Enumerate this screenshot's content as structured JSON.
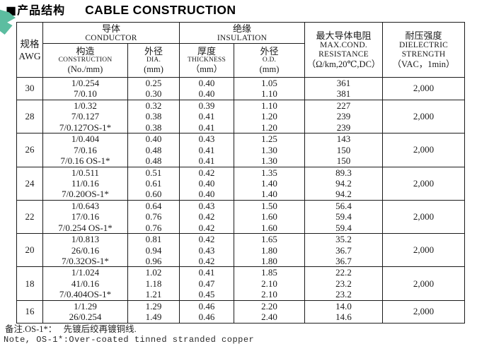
{
  "page": {
    "title_bullet": "■",
    "title_cn": "产品结构",
    "title_en": "CABLE CONSTRUCTION",
    "accent_color": "#5cbda0"
  },
  "table": {
    "headers": {
      "awg_cn": "规格",
      "awg_en": "AWG",
      "conductor_cn": "导体",
      "conductor_en": "CONDUCTOR",
      "insulation_cn": "绝缘",
      "insulation_en": "INSULATION",
      "construction_cn": "构造",
      "construction_en": "CONSTRUCTION",
      "construction_unit": "(No./mm)",
      "dia_cn": "外径",
      "dia_en": "DIA.",
      "dia_unit": "(mm)",
      "thickness_cn": "厚度",
      "thickness_en": "THICKNESS",
      "thickness_unit": "（mm）",
      "od_cn": "外径",
      "od_en": "O.D.",
      "od_unit": "(mm)",
      "resistance_cn": "最大导体电阻",
      "resistance_en1": "MAX.COND.",
      "resistance_en2": "RESISTANCE",
      "resistance_unit": "（Ω/km,20℃,DC）",
      "dielectric_cn": "耐压强度",
      "dielectric_en1": "DIELECTRIC",
      "dielectric_en2": "STRENGTH",
      "dielectric_unit": "（VAC，1min）"
    },
    "rows": [
      {
        "awg": "30",
        "construction": [
          "1/0.254",
          "7/0.10"
        ],
        "dia": [
          "0.25",
          "0.30"
        ],
        "thickness": [
          "0.40",
          "0.40"
        ],
        "od": [
          "1.05",
          "1.10"
        ],
        "resistance": [
          "361",
          "381"
        ],
        "dielectric": "2,000"
      },
      {
        "awg": "28",
        "construction": [
          "1/0.32",
          "7/0.127",
          "7/0.127OS-1*"
        ],
        "dia": [
          "0.32",
          "0.38",
          "0.38"
        ],
        "thickness": [
          "0.39",
          "0.41",
          "0.41"
        ],
        "od": [
          "1.10",
          "1.20",
          "1.20"
        ],
        "resistance": [
          "227",
          "239",
          "239"
        ],
        "dielectric": "2,000"
      },
      {
        "awg": "26",
        "construction": [
          "1/0.404",
          "7/0.16",
          "7/0.16 OS-1*"
        ],
        "dia": [
          "0.40",
          "0.48",
          "0.48"
        ],
        "thickness": [
          "0.43",
          "0.41",
          "0.41"
        ],
        "od": [
          "1.25",
          "1.30",
          "1.30"
        ],
        "resistance": [
          "143",
          "150",
          "150"
        ],
        "dielectric": "2,000"
      },
      {
        "awg": "24",
        "construction": [
          "1/0.511",
          "11/0.16",
          "7/0.20OS-1*"
        ],
        "dia": [
          "0.51",
          "0.61",
          "0.60"
        ],
        "thickness": [
          "0.42",
          "0.40",
          "0.40"
        ],
        "od": [
          "1.35",
          "1.40",
          "1.40"
        ],
        "resistance": [
          "89.3",
          "94.2",
          "94.2"
        ],
        "dielectric": "2,000"
      },
      {
        "awg": "22",
        "construction": [
          "1/0.643",
          "17/0.16",
          "7/0.254 OS-1*"
        ],
        "dia": [
          "0.64",
          "0.76",
          "0.76"
        ],
        "thickness": [
          "0.43",
          "0.42",
          "0.42"
        ],
        "od": [
          "1.50",
          "1.60",
          "1.60"
        ],
        "resistance": [
          "56.4",
          "59.4",
          "59.4"
        ],
        "dielectric": "2,000"
      },
      {
        "awg": "20",
        "construction": [
          "1/0.813",
          "26/0.16",
          "7/0.32OS-1*"
        ],
        "dia": [
          "0.81",
          "0.94",
          "0.96"
        ],
        "thickness": [
          "0.42",
          "0.43",
          "0.42"
        ],
        "od": [
          "1.65",
          "1.80",
          "1.80"
        ],
        "resistance": [
          "35.2",
          "36.7",
          "36.7"
        ],
        "dielectric": "2,000"
      },
      {
        "awg": "18",
        "construction": [
          "1/1.024",
          "41/0.16",
          "7/0.404OS-1*"
        ],
        "dia": [
          "1.02",
          "1.18",
          "1.21"
        ],
        "thickness": [
          "0.41",
          "0.47",
          "0.45"
        ],
        "od": [
          "1.85",
          "2.10",
          "2.10"
        ],
        "resistance": [
          "22.2",
          "23.2",
          "23.2"
        ],
        "dielectric": "2,000"
      },
      {
        "awg": "16",
        "construction": [
          "1/1.29",
          "26/0.254"
        ],
        "dia": [
          "1.29",
          "1.49"
        ],
        "thickness": [
          "0.46",
          "0.46"
        ],
        "od": [
          "2.20",
          "2.40"
        ],
        "resistance": [
          "14.0",
          "14.6"
        ],
        "dielectric": "2,000"
      }
    ]
  },
  "notes": {
    "cn": "备注.OS-1*：　 先镀后绞再镀铜线.",
    "en": "Note, OS-1*:Over-coated tinned stranded copper"
  }
}
